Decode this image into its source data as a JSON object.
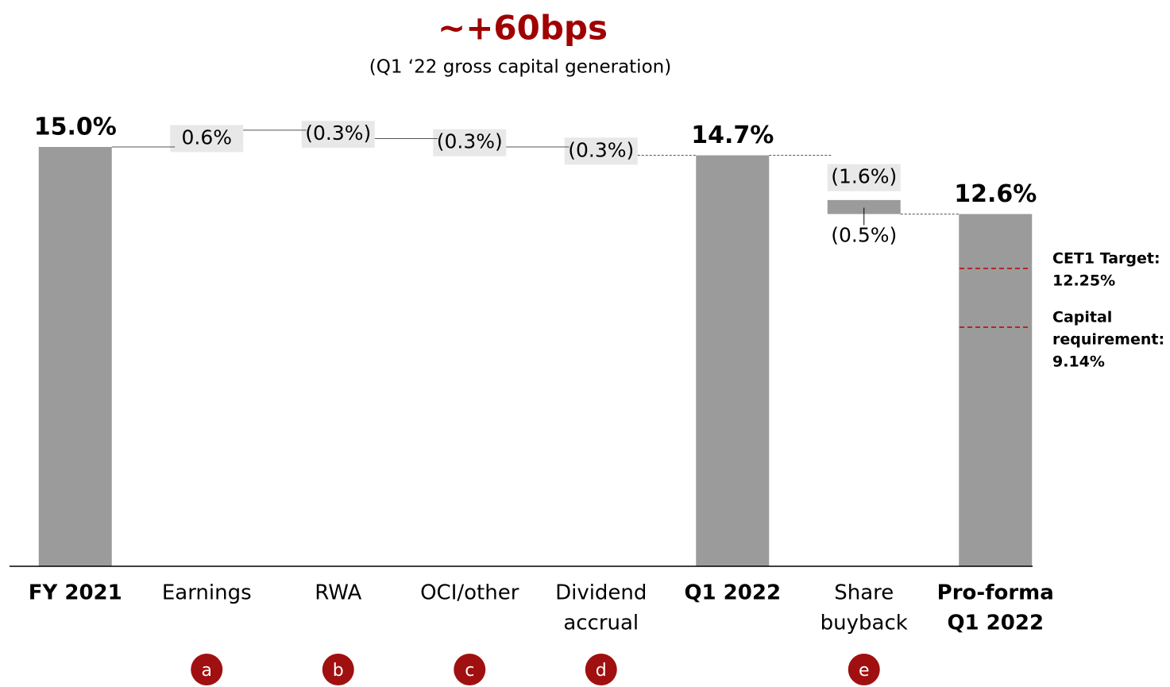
{
  "chart_data": {
    "type": "waterfall",
    "title": "~+60bps",
    "subtitle": "(Q1 ‘22 gross capital generation)",
    "categories": [
      [
        "FY 2021"
      ],
      [
        "Earnings"
      ],
      [
        "RWA"
      ],
      [
        "OCI/other"
      ],
      [
        "Dividend",
        "accrual"
      ],
      [
        "Q1 2022"
      ],
      [
        "Share",
        "buyback"
      ],
      [
        "Pro-forma",
        "Q1 2022"
      ]
    ],
    "is_total": [
      true,
      false,
      false,
      false,
      false,
      true,
      false,
      true
    ],
    "series": [
      {
        "color": "#9b9b9b",
        "values": [
          15.0,
          0.6,
          -0.3,
          -0.3,
          -0.3,
          14.7,
          -1.6,
          12.6
        ],
        "value_labels": [
          "15.0%",
          "0.6%",
          "(0.3%)",
          "(0.3%)",
          "(0.3%)",
          "14.7%",
          "(1.6%)",
          "12.6%"
        ]
      },
      {
        "color": "#9b9b9b",
        "values": [
          null,
          null,
          null,
          null,
          null,
          null,
          -0.5,
          null
        ],
        "value_labels": [
          null,
          null,
          null,
          null,
          null,
          null,
          "(0.5%)",
          null
        ]
      }
    ],
    "ylim": [
      0,
      15
    ],
    "label_box_color": "#e8e8e8",
    "title_color": "#a00000",
    "footnote_letters": [
      null,
      "a",
      "b",
      "c",
      "d",
      null,
      "e",
      null
    ],
    "annotations": [
      {
        "lines": [
          "CET1 Target:",
          "12.25%"
        ],
        "color": "#c00000"
      },
      {
        "lines": [
          "Capital",
          "requirement:",
          "9.14%"
        ],
        "color": "#c00000"
      }
    ]
  }
}
